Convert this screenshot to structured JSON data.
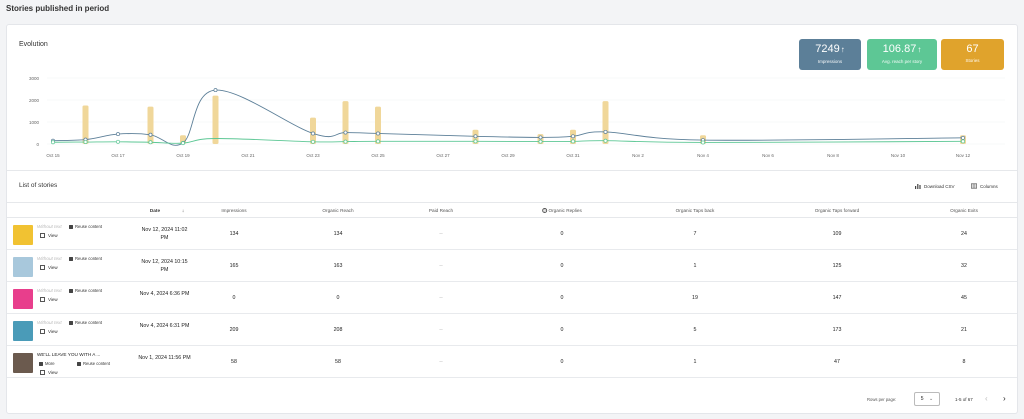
{
  "page": {
    "title": "Stories published in period"
  },
  "evolution": {
    "title": "Evolution",
    "kpis": [
      {
        "value": "7249",
        "arrow": "↑",
        "label": "Impressions",
        "color": "#5c7f98"
      },
      {
        "value": "106.87",
        "arrow": "↑",
        "label": "Avg. reach per story",
        "color": "#5dc795"
      },
      {
        "value": "67",
        "arrow": "",
        "label": "Stories",
        "color": "#e0a32c"
      }
    ]
  },
  "chart_data": {
    "type": "line",
    "y_ticks": [
      "3000",
      "2000",
      "1000",
      "0"
    ],
    "ylim": [
      0,
      3000
    ],
    "x_ticks": [
      "Oct 15",
      "Oct 17",
      "Oct 19",
      "Oct 21",
      "Oct 23",
      "Oct 25",
      "Oct 27",
      "Oct 29",
      "Oct 31",
      "Nov 2",
      "Nov 4",
      "Nov 6",
      "Nov 8",
      "Nov 10",
      "Nov 12"
    ],
    "xlim": [
      0,
      28
    ],
    "colors": {
      "impressions": "#5c7f98",
      "reach": "#5dc795",
      "stories": "#f0d79a"
    },
    "bars": [
      {
        "x": 1,
        "value": 1750
      },
      {
        "x": 3,
        "value": 1700
      },
      {
        "x": 4,
        "value": 400
      },
      {
        "x": 5,
        "value": 2200
      },
      {
        "x": 8,
        "value": 1200
      },
      {
        "x": 9,
        "value": 1950
      },
      {
        "x": 10,
        "value": 1700
      },
      {
        "x": 13,
        "value": 650
      },
      {
        "x": 15,
        "value": 450
      },
      {
        "x": 16,
        "value": 650
      },
      {
        "x": 17,
        "value": 1950
      },
      {
        "x": 20,
        "value": 400
      },
      {
        "x": 28,
        "value": 400
      }
    ],
    "series": [
      {
        "key": "impressions",
        "points": [
          [
            0,
            150
          ],
          [
            1,
            200
          ],
          [
            2,
            450
          ],
          [
            3,
            420
          ],
          [
            4,
            50
          ],
          [
            5,
            2450
          ],
          [
            8,
            480
          ],
          [
            9,
            520
          ],
          [
            10,
            480
          ],
          [
            13,
            350
          ],
          [
            15,
            300
          ],
          [
            16,
            350
          ],
          [
            17,
            550
          ],
          [
            20,
            180
          ],
          [
            28,
            280
          ]
        ],
        "markers": [
          0,
          1,
          2,
          3,
          4,
          5,
          8,
          9,
          10,
          13,
          15,
          16,
          17,
          20,
          28
        ]
      },
      {
        "key": "reach",
        "points": [
          [
            0,
            80
          ],
          [
            1,
            90
          ],
          [
            2,
            100
          ],
          [
            3,
            80
          ],
          [
            4,
            40
          ],
          [
            5,
            250
          ],
          [
            8,
            100
          ],
          [
            9,
            110
          ],
          [
            10,
            120
          ],
          [
            13,
            120
          ],
          [
            15,
            110
          ],
          [
            16,
            120
          ],
          [
            17,
            150
          ],
          [
            20,
            70
          ],
          [
            28,
            120
          ]
        ],
        "markers": [
          0,
          1,
          2,
          3,
          4,
          8,
          9,
          10,
          13,
          15,
          16,
          17,
          20,
          28
        ]
      }
    ]
  },
  "list": {
    "title": "List of stories",
    "download_label": "Download CSV",
    "columns_label": "Columns",
    "headers": {
      "date": "Date",
      "sort_icon": "↓",
      "impressions": "Impressions",
      "organic_reach": "Organic Reach",
      "paid_reach": "Paid Reach",
      "organic_replies": "Organic Replies",
      "taps_back": "Organic Taps back",
      "taps_forward": "Organic Taps forward",
      "exits": "Organic Exits"
    },
    "actions": {
      "reuse": "Reuse content",
      "view": "View",
      "more": "More"
    },
    "rows": [
      {
        "caption": "Without text",
        "date": "Nov 12, 2024 11:02 PM",
        "impressions": "134",
        "organic_reach": "134",
        "paid_reach": "--",
        "replies": "0",
        "taps_back": "7",
        "taps_forward": "109",
        "exits": "24",
        "thumb": "#f1c232",
        "has_more": false
      },
      {
        "caption": "Without text",
        "date": "Nov 12, 2024 10:15 PM",
        "impressions": "165",
        "organic_reach": "163",
        "paid_reach": "--",
        "replies": "0",
        "taps_back": "1",
        "taps_forward": "125",
        "exits": "32",
        "thumb": "#a8c8dc",
        "has_more": false
      },
      {
        "caption": "Without text",
        "date": "Nov 4, 2024 6:36 PM",
        "impressions": "0",
        "organic_reach": "0",
        "paid_reach": "--",
        "replies": "0",
        "taps_back": "19",
        "taps_forward": "147",
        "exits": "45",
        "thumb": "#e83e8c",
        "has_more": false
      },
      {
        "caption": "Without text",
        "date": "Nov 4, 2024 6:31 PM",
        "impressions": "209",
        "organic_reach": "208",
        "paid_reach": "--",
        "replies": "0",
        "taps_back": "5",
        "taps_forward": "173",
        "exits": "21",
        "thumb": "#4a9bb8",
        "has_more": false
      },
      {
        "caption": "WE'LL LEAVE YOU WITH A ...",
        "date": "Nov 1, 2024 11:56 PM",
        "impressions": "58",
        "organic_reach": "58",
        "paid_reach": "--",
        "replies": "0",
        "taps_back": "1",
        "taps_forward": "47",
        "exits": "8",
        "thumb": "#6b5a4e",
        "has_more": true
      }
    ],
    "footer": {
      "rows_per_page_label": "Rows per page:",
      "rows_per_page": "5",
      "range": "1-5 of 67",
      "prev": "‹",
      "next": "›"
    }
  }
}
